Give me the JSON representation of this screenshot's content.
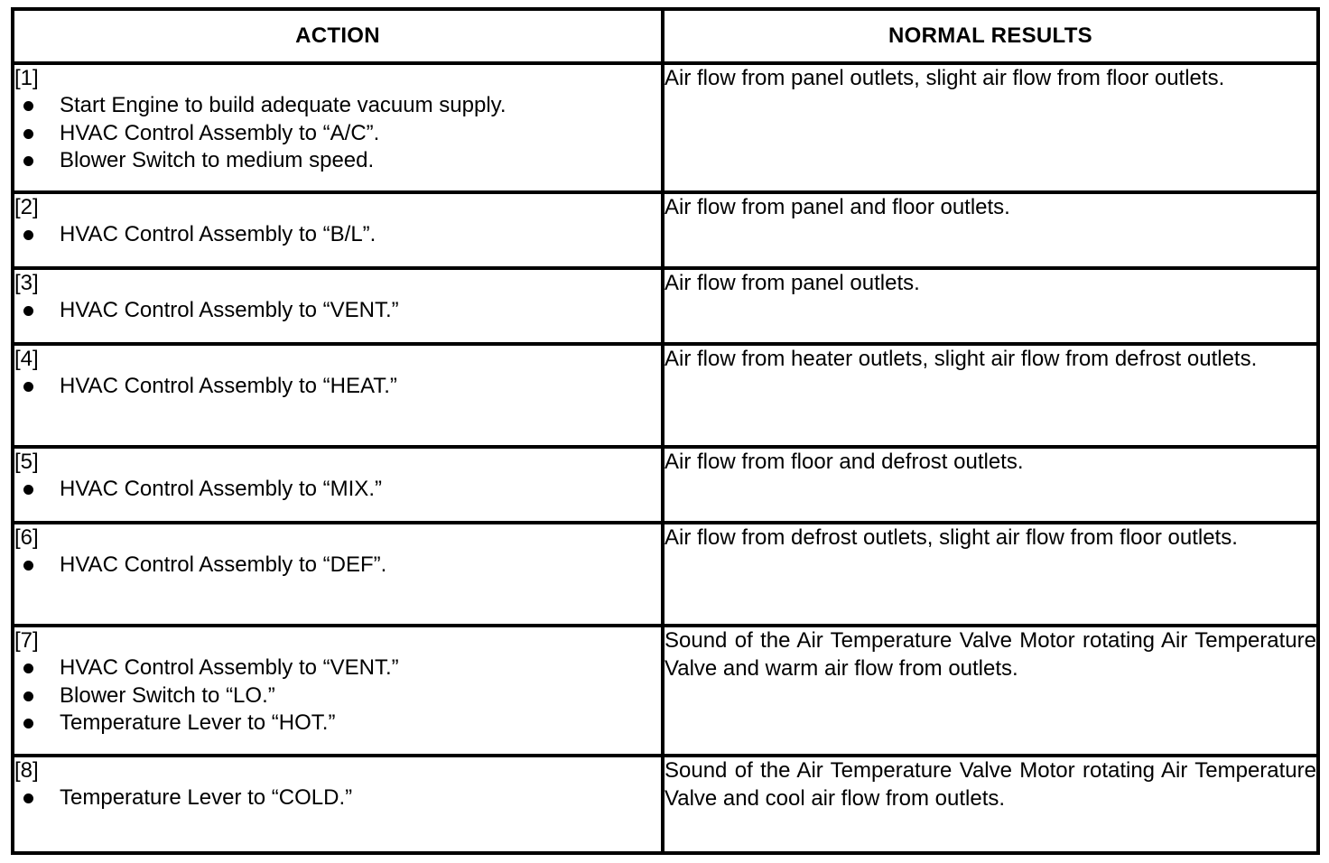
{
  "table": {
    "headers": {
      "action": "ACTION",
      "results": "NORMAL RESULTS"
    },
    "rows": [
      {
        "step": "[1]",
        "actions": [
          "Start Engine to build adequate vacuum supply.",
          "HVAC Control Assembly to “A/C”.",
          "Blower Switch to medium speed."
        ],
        "result": "Air flow from panel outlets, slight air flow from floor outlets."
      },
      {
        "step": "[2]",
        "actions": [
          "HVAC Control Assembly to “B/L”."
        ],
        "result": "Air flow from panel and floor outlets."
      },
      {
        "step": "[3]",
        "actions": [
          "HVAC Control Assembly to “VENT.”"
        ],
        "result": "Air flow from panel outlets."
      },
      {
        "step": "[4]",
        "actions": [
          "HVAC Control Assembly to “HEAT.”"
        ],
        "result": "Air flow from heater outlets, slight air flow from defrost outlets."
      },
      {
        "step": "[5]",
        "actions": [
          "HVAC Control Assembly to “MIX.”"
        ],
        "result": "Air flow from floor and defrost outlets."
      },
      {
        "step": "[6]",
        "actions": [
          "HVAC Control Assembly to “DEF”."
        ],
        "result": "Air flow from defrost outlets, slight air flow from floor outlets."
      },
      {
        "step": "[7]",
        "actions": [
          "HVAC Control Assembly to “VENT.”",
          "Blower Switch to “LO.”",
          "Temperature Lever to “HOT.”"
        ],
        "result": "Sound of the Air Temperature Valve Motor rotating Air Temperature Valve and warm air flow from outlets."
      },
      {
        "step": "[8]",
        "actions": [
          "Temperature Lever to “COLD.”"
        ],
        "result": "Sound of the Air Temperature Valve Motor rotating Air Temperature Valve and cool air flow from outlets."
      }
    ]
  }
}
